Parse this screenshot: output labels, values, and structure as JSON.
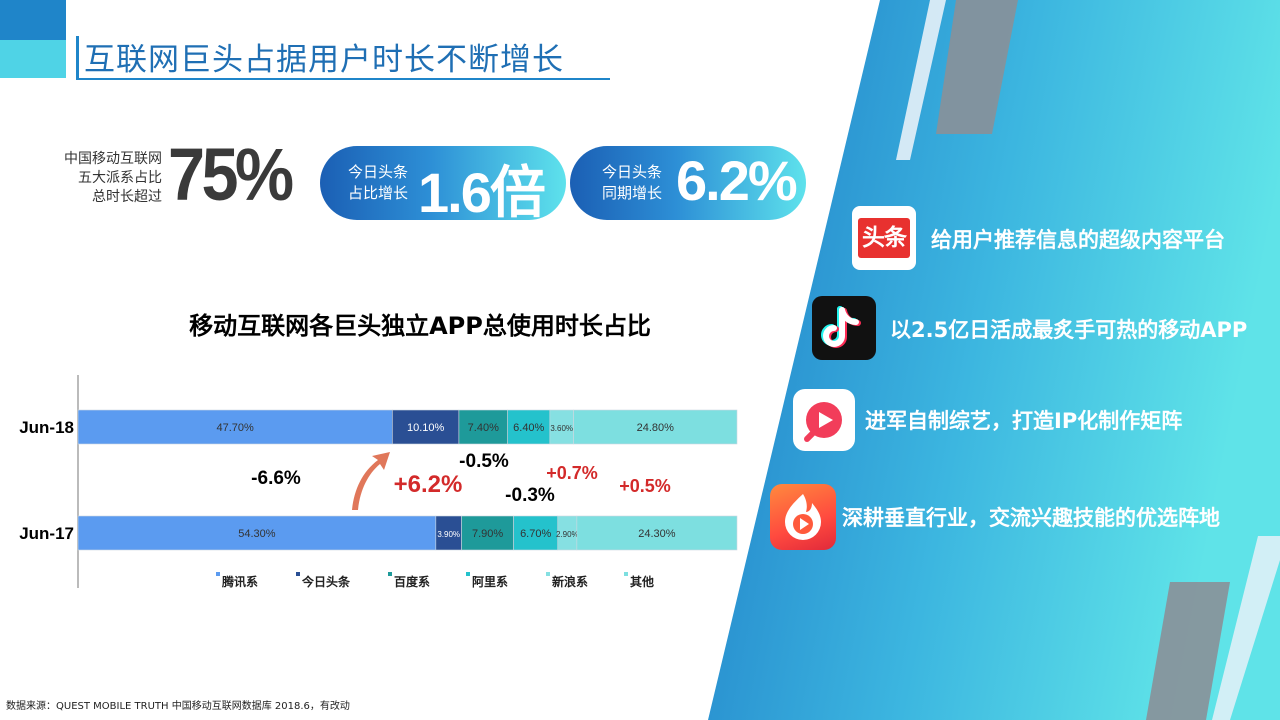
{
  "title": "互联网巨头占据用户时长不断增长",
  "stats": {
    "share": {
      "label": [
        "中国移动互联网",
        "五大派系占比",
        "总时长超过"
      ],
      "value": "75%"
    },
    "toutiao_share": {
      "label": [
        "今日头条",
        "占比增长"
      ],
      "value": "1.6倍"
    },
    "toutiao_growth": {
      "label": [
        "今日头条",
        "同期增长"
      ],
      "value": "6.2%"
    }
  },
  "chart_data": {
    "type": "bar",
    "stacked": true,
    "orientation": "horizontal",
    "title": "移动互联网各巨头独立APP总使用时长占比",
    "categories": [
      "Jun-18",
      "Jun-17"
    ],
    "series": [
      {
        "name": "腾讯系",
        "values": [
          47.7,
          54.3
        ],
        "labels": [
          "47.70%",
          "54.30%"
        ],
        "color": "#5b9bf0"
      },
      {
        "name": "今日头条",
        "values": [
          10.1,
          3.9
        ],
        "labels": [
          "10.10%",
          "3.90%"
        ],
        "color": "#2a4f94"
      },
      {
        "name": "百度系",
        "values": [
          7.4,
          7.9
        ],
        "labels": [
          "7.40%",
          "7.90%"
        ],
        "color": "#1e9a9a"
      },
      {
        "name": "阿里系",
        "values": [
          6.4,
          6.7
        ],
        "labels": [
          "6.40%",
          "6.70%"
        ],
        "color": "#24c2cc"
      },
      {
        "name": "新浪系",
        "values": [
          3.6,
          2.9
        ],
        "labels": [
          "3.60%",
          "2.90%"
        ],
        "color": "#86e0e2"
      },
      {
        "name": "其他",
        "values": [
          24.8,
          24.3
        ],
        "labels": [
          "24.80%",
          "24.30%"
        ],
        "color": "#7ddfe0"
      }
    ],
    "changes": [
      {
        "series": "腾讯系",
        "text": "-6.6%",
        "color": "#000000"
      },
      {
        "series": "今日头条",
        "text": "+6.2%",
        "color": "#d32a2a"
      },
      {
        "series": "百度系",
        "text": "-0.5%",
        "color": "#000000"
      },
      {
        "series": "阿里系",
        "text": "-0.3%",
        "color": "#000000"
      },
      {
        "series": "新浪系",
        "text": "+0.7%",
        "color": "#d32a2a"
      },
      {
        "series": "其他",
        "text": "+0.5%",
        "color": "#d32a2a"
      }
    ],
    "legend_position": "bottom"
  },
  "source": "数据来源：QUEST MOBILE TRUTH 中国移动互联网数据库 2018.6，有改动",
  "features": [
    {
      "icon": "toutiao-app-icon",
      "icon_text": "头条",
      "text": "给用户推荐信息的超级内容平台"
    },
    {
      "icon": "douyin-app-icon",
      "text": "以2.5亿日活成最炙手可热的移动APP"
    },
    {
      "icon": "xigua-video-app-icon",
      "text": "进军自制综艺，打造IP化制作矩阵"
    },
    {
      "icon": "huoshan-video-app-icon",
      "text": "深耕垂直行业，交流兴趣技能的优选阵地"
    }
  ]
}
